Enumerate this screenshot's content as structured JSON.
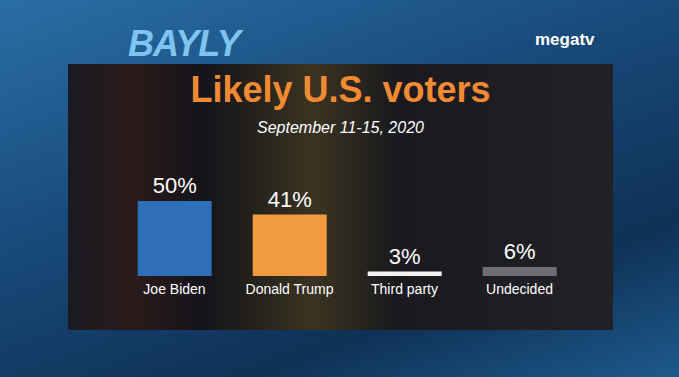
{
  "chart_data": {
    "type": "bar",
    "title": "Likely U.S. voters",
    "subtitle": "September 11-15, 2020",
    "annotations": [
      "BAYLY",
      "megatv"
    ],
    "categories": [
      "Joe Biden",
      "Donald Trump",
      "Third party",
      "Undecided"
    ],
    "values": [
      50,
      41,
      3,
      6
    ],
    "value_labels": [
      "50%",
      "41%",
      "3%",
      "6%"
    ],
    "colors": [
      "#2f6fb8",
      "#f29a3f",
      "#f2f2f2",
      "#6e6e72"
    ],
    "ylim": [
      0,
      50
    ],
    "data_labels": true,
    "tick_labels": "x",
    "grid": false
  }
}
